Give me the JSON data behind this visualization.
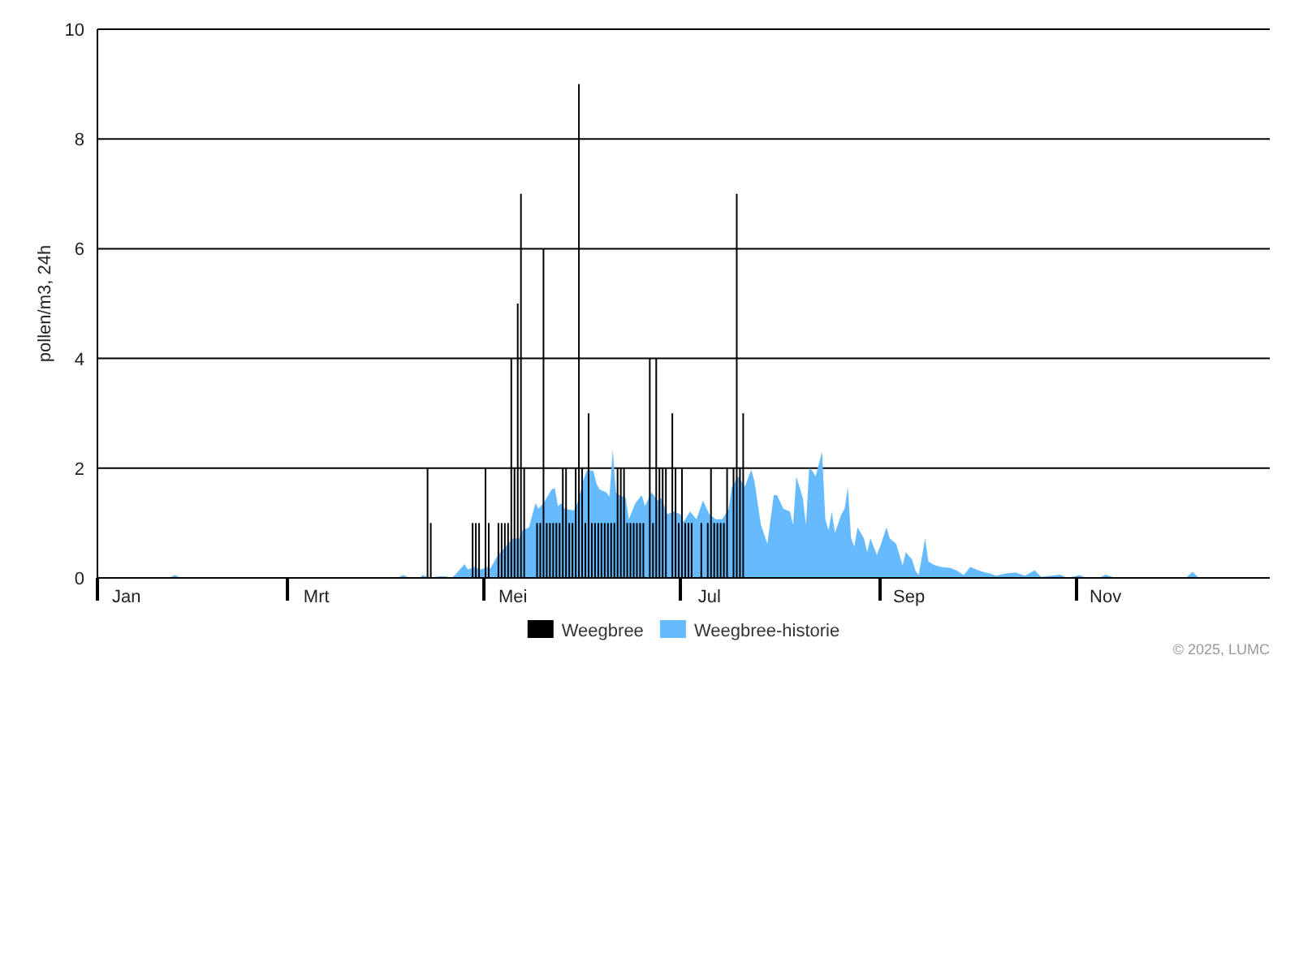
{
  "chart_data": {
    "type": "bar",
    "ylabel": "pollen/m3, 24h",
    "xlim": [
      "--01-01",
      "--12-31"
    ],
    "xticks": [
      {
        "value": "--01-01",
        "label": null
      },
      {
        "value": "--01-10",
        "label": "Jan"
      },
      {
        "value": "--03-01",
        "label": null
      },
      {
        "value": "--03-10",
        "label": "Mrt"
      },
      {
        "value": "--05-01",
        "label": null
      },
      {
        "value": "--05-10",
        "label": "Mei"
      },
      {
        "value": "--07-01",
        "label": null
      },
      {
        "value": "--07-10",
        "label": "Jul"
      },
      {
        "value": "--09-01",
        "label": null
      },
      {
        "value": "--09-10",
        "label": "Sep"
      },
      {
        "value": "--11-01",
        "label": null
      },
      {
        "value": "--11-10",
        "label": "Nov"
      }
    ],
    "ylim": [
      0,
      10
    ],
    "yticks": [
      0,
      2,
      4,
      6,
      8,
      10
    ],
    "grid": "y",
    "legend": "bottom",
    "annotations": [
      "© 2025, LUMC"
    ],
    "series": [
      {
        "name": "Weegbree",
        "color": "#000000",
        "x": [
          "--04-13",
          "--04-14",
          "--04-27",
          "--04-28",
          "--04-29",
          "--05-01",
          "--05-02",
          "--05-05",
          "--05-06",
          "--05-07",
          "--05-08",
          "--05-09",
          "--05-10",
          "--05-11",
          "--05-12",
          "--05-13",
          "--05-17",
          "--05-18",
          "--05-19",
          "--05-20",
          "--05-21",
          "--05-22",
          "--05-23",
          "--05-24",
          "--05-25",
          "--05-26",
          "--05-27",
          "--05-28",
          "--05-29",
          "--05-30",
          "--05-31",
          "--06-01",
          "--06-02",
          "--06-03",
          "--06-04",
          "--06-05",
          "--06-06",
          "--06-07",
          "--06-08",
          "--06-09",
          "--06-10",
          "--06-11",
          "--06-12",
          "--06-13",
          "--06-14",
          "--06-15",
          "--06-16",
          "--06-17",
          "--06-18",
          "--06-19",
          "--06-21",
          "--06-22",
          "--06-23",
          "--06-24",
          "--06-25",
          "--06-26",
          "--06-28",
          "--06-29",
          "--06-30",
          "--07-01",
          "--07-02",
          "--07-03",
          "--07-04",
          "--07-07",
          "--07-09",
          "--07-10",
          "--07-11",
          "--07-12",
          "--07-13",
          "--07-14",
          "--07-15",
          "--07-17",
          "--07-18",
          "--07-19",
          "--07-20"
        ],
        "values": [
          2,
          1,
          1,
          1,
          1,
          2,
          1,
          1,
          1,
          1,
          1,
          4,
          2,
          5,
          7,
          2,
          1,
          1,
          6,
          1,
          1,
          1,
          1,
          1,
          2,
          2,
          1,
          1,
          2,
          9,
          2,
          1,
          3,
          1,
          1,
          1,
          1,
          1,
          1,
          1,
          1,
          2,
          2,
          2,
          1,
          1,
          1,
          1,
          1,
          1,
          4,
          1,
          4,
          2,
          2,
          2,
          3,
          2,
          1,
          2,
          1,
          1,
          1,
          1,
          1,
          2,
          1,
          1,
          1,
          1,
          2,
          2,
          7,
          2,
          3
        ]
      },
      {
        "name": "Weegbree-historie",
        "type": "area",
        "color": "#66bbff",
        "x": [
          "--01-01",
          "--01-23",
          "--01-25",
          "--01-27",
          "--04-04",
          "--04-06",
          "--04-08",
          "--04-11",
          "--04-12",
          "--04-14",
          "--04-17",
          "--04-19",
          "--04-21",
          "--04-22",
          "--04-25",
          "--04-26",
          "--04-28",
          "--04-30",
          "--05-02",
          "--05-03",
          "--05-05",
          "--05-07",
          "--05-10",
          "--05-12",
          "--05-13",
          "--05-15",
          "--05-17",
          "--05-18",
          "--05-20",
          "--05-22",
          "--05-23",
          "--05-24",
          "--05-25",
          "--05-26",
          "--05-28",
          "--05-29",
          "--05-30",
          "--06-01",
          "--06-02",
          "--06-04",
          "--06-05",
          "--06-06",
          "--06-08",
          "--06-09",
          "--06-10",
          "--06-11",
          "--06-12",
          "--06-14",
          "--06-15",
          "--06-17",
          "--06-19",
          "--06-20",
          "--06-22",
          "--06-24",
          "--06-25",
          "--06-27",
          "--06-29",
          "--07-01",
          "--07-02",
          "--07-04",
          "--07-06",
          "--07-08",
          "--07-10",
          "--07-12",
          "--07-14",
          "--07-16",
          "--07-17",
          "--07-19",
          "--07-21",
          "--07-23",
          "--07-24",
          "--07-26",
          "--07-28",
          "--07-30",
          "--07-31",
          "--08-02",
          "--08-04",
          "--08-05",
          "--08-06",
          "--08-08",
          "--08-09",
          "--08-10",
          "--08-11",
          "--08-12",
          "--08-14",
          "--08-15",
          "--08-16",
          "--08-17",
          "--08-18",
          "--08-20",
          "--08-21",
          "--08-22",
          "--08-23",
          "--08-24",
          "--08-25",
          "--08-27",
          "--08-28",
          "--08-29",
          "--08-31",
          "--09-01",
          "--09-03",
          "--09-04",
          "--09-06",
          "--09-08",
          "--09-09",
          "--09-11",
          "--09-12",
          "--09-13",
          "--09-15",
          "--09-16",
          "--09-18",
          "--09-20",
          "--09-23",
          "--09-25",
          "--09-27",
          "--09-29",
          "--10-01",
          "--10-03",
          "--10-05",
          "--10-07",
          "--10-10",
          "--10-13",
          "--10-16",
          "--10-19",
          "--10-21",
          "--10-27",
          "--10-29",
          "--11-02",
          "--11-04",
          "--11-08",
          "--11-10",
          "--11-13",
          "--12-05",
          "--12-07",
          "--12-09",
          "--12-31"
        ],
        "values": [
          0,
          0,
          0.05,
          0,
          0,
          0.05,
          0,
          0,
          0.05,
          0,
          0.03,
          0.03,
          0,
          0.05,
          0.25,
          0.15,
          0.2,
          0.15,
          0.2,
          0.17,
          0.38,
          0.52,
          0.72,
          0.72,
          0.87,
          0.92,
          1.36,
          1.26,
          1.41,
          1.61,
          1.64,
          1.31,
          1.36,
          1.26,
          1.24,
          1.23,
          1.36,
          1.8,
          1.97,
          1.95,
          1.71,
          1.61,
          1.56,
          1.48,
          2.33,
          1.56,
          1.51,
          1.46,
          1.07,
          1.36,
          1.51,
          1.31,
          1.56,
          1.41,
          1.46,
          1.16,
          1.21,
          1.16,
          1.02,
          1.21,
          1.07,
          1.41,
          1.16,
          1.07,
          1.07,
          1.26,
          1.66,
          1.85,
          1.66,
          1.97,
          1.76,
          0.97,
          0.62,
          1.51,
          1.51,
          1.26,
          1.21,
          0.97,
          1.85,
          1.46,
          0.97,
          2.0,
          1.95,
          1.85,
          2.3,
          1.07,
          0.87,
          1.21,
          0.82,
          1.16,
          1.26,
          1.66,
          0.72,
          0.57,
          0.92,
          0.72,
          0.47,
          0.72,
          0.42,
          0.57,
          0.92,
          0.72,
          0.62,
          0.23,
          0.47,
          0.33,
          0.13,
          0.05,
          0.72,
          0.3,
          0.23,
          0.2,
          0.18,
          0.13,
          0.05,
          0.2,
          0.15,
          0.11,
          0.08,
          0.04,
          0.08,
          0.1,
          0.04,
          0.14,
          0.02,
          0.06,
          0,
          0.05,
          0,
          0,
          0.06,
          0,
          0,
          0.11,
          0,
          0
        ]
      }
    ]
  }
}
